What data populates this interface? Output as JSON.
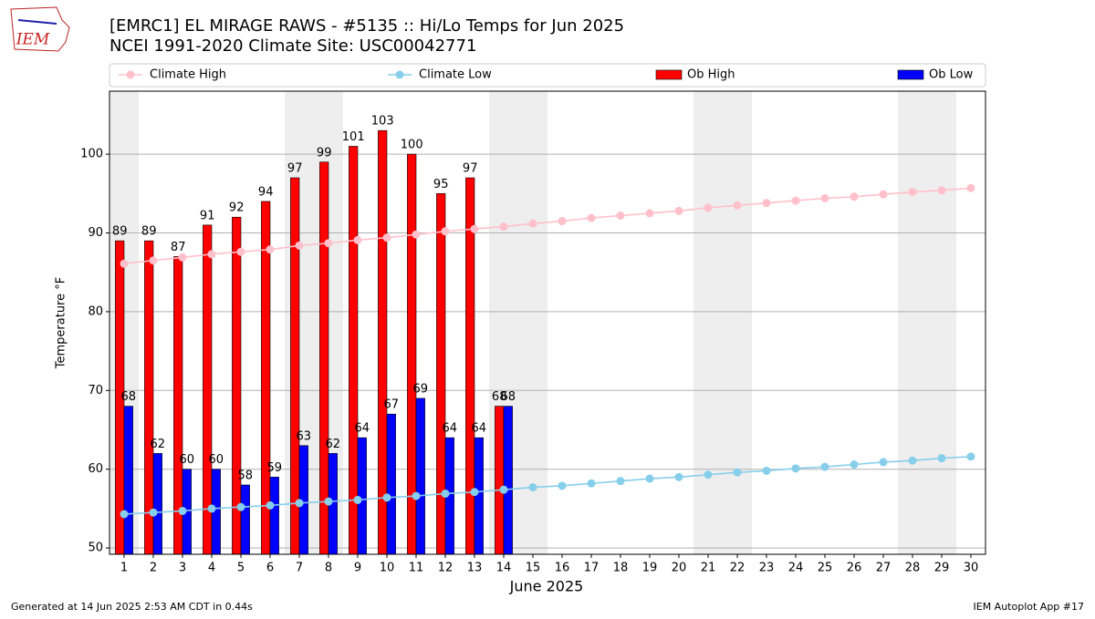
{
  "logo_text": "IEM",
  "footer_left": "Generated at 14 Jun 2025 2:53 AM CDT in 0.44s",
  "footer_right": "IEM Autoplot App #17",
  "chart_data": {
    "type": "bar",
    "title": "[EMRC1] EL MIRAGE RAWS - #5135 :: Hi/Lo Temps for Jun 2025",
    "subtitle": "NCEI 1991-2020 Climate Site: USC00042771",
    "x_label": "June 2025",
    "y_label": "Temperature °F",
    "x": [
      1,
      2,
      3,
      4,
      5,
      6,
      7,
      8,
      9,
      10,
      11,
      12,
      13,
      14,
      15,
      16,
      17,
      18,
      19,
      20,
      21,
      22,
      23,
      24,
      25,
      26,
      27,
      28,
      29,
      30
    ],
    "xlim": [
      0.5,
      30.5
    ],
    "xticks": [
      1,
      2,
      3,
      4,
      5,
      6,
      7,
      8,
      9,
      10,
      11,
      12,
      13,
      14,
      15,
      16,
      17,
      18,
      19,
      20,
      21,
      22,
      23,
      24,
      25,
      26,
      27,
      28,
      29,
      30
    ],
    "ylim": [
      49.2,
      108
    ],
    "yticks": [
      50,
      60,
      70,
      80,
      90,
      100
    ],
    "grid": true,
    "shaded_days": [
      1,
      7,
      8,
      14,
      15,
      21,
      22,
      28,
      29
    ],
    "series": [
      {
        "name": "Climate High",
        "type": "line",
        "color": "#ffc0cb",
        "values": [
          86.1,
          86.5,
          86.9,
          87.3,
          87.6,
          87.9,
          88.4,
          88.7,
          89.1,
          89.4,
          89.8,
          90.2,
          90.5,
          90.8,
          91.2,
          91.5,
          91.9,
          92.2,
          92.5,
          92.8,
          93.2,
          93.5,
          93.8,
          94.1,
          94.4,
          94.6,
          94.9,
          95.2,
          95.4,
          95.7
        ]
      },
      {
        "name": "Climate Low",
        "type": "line",
        "color": "#87ceeb",
        "values": [
          54.3,
          54.5,
          54.7,
          55.0,
          55.2,
          55.4,
          55.7,
          55.9,
          56.1,
          56.4,
          56.6,
          56.9,
          57.1,
          57.4,
          57.7,
          57.9,
          58.2,
          58.5,
          58.8,
          59.0,
          59.3,
          59.6,
          59.8,
          60.1,
          60.3,
          60.6,
          60.9,
          61.1,
          61.4,
          61.6
        ]
      },
      {
        "name": "Ob High",
        "type": "bar",
        "color": "#ff0000",
        "values": [
          89,
          89,
          87,
          91,
          92,
          94,
          97,
          99,
          101,
          103,
          100,
          95,
          97,
          68,
          null,
          null,
          null,
          null,
          null,
          null,
          null,
          null,
          null,
          null,
          null,
          null,
          null,
          null,
          null,
          null
        ]
      },
      {
        "name": "Ob Low",
        "type": "bar",
        "color": "#0000ff",
        "values": [
          68,
          62,
          60,
          60,
          58,
          59,
          63,
          62,
          64,
          67,
          69,
          64,
          64,
          68,
          null,
          null,
          null,
          null,
          null,
          null,
          null,
          null,
          null,
          null,
          null,
          null,
          null,
          null,
          null,
          null
        ]
      }
    ]
  }
}
